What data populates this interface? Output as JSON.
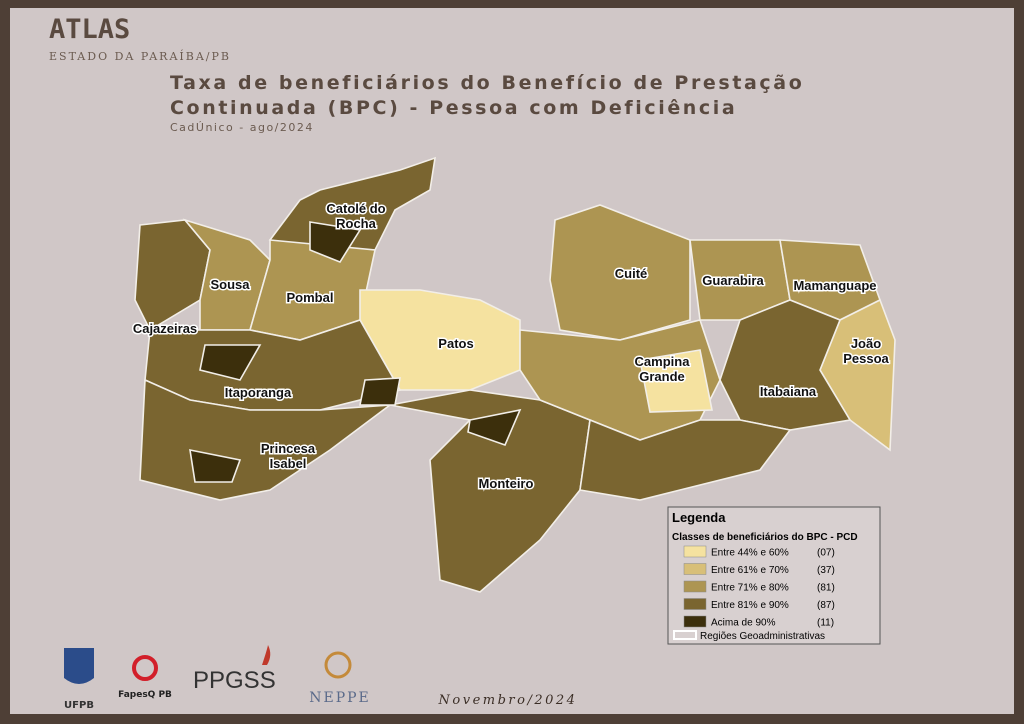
{
  "header": {
    "brand": "ATLAS",
    "state": "ESTADO DA PARAÍBA/PB",
    "title_lines": [
      "Taxa de beneficiários do Benefício de Prestação",
      "Continuada (BPC) - Pessoa com Deficiência"
    ],
    "source": "CadÚnico - ago/2024"
  },
  "regions": [
    {
      "lines": [
        "Catolé do",
        "Rocha"
      ]
    },
    {
      "lines": [
        "Sousa"
      ]
    },
    {
      "lines": [
        "Pombal"
      ]
    },
    {
      "lines": [
        "Cajazeiras"
      ]
    },
    {
      "lines": [
        "Patos"
      ]
    },
    {
      "lines": [
        "Itaporanga"
      ]
    },
    {
      "lines": [
        "Princesa",
        "Isabel"
      ]
    },
    {
      "lines": [
        "Monteiro"
      ]
    },
    {
      "lines": [
        "Cuité"
      ]
    },
    {
      "lines": [
        "Guarabira"
      ]
    },
    {
      "lines": [
        "Mamanguape"
      ]
    },
    {
      "lines": [
        "João",
        "Pessoa"
      ]
    },
    {
      "lines": [
        "Campina",
        "Grande"
      ]
    },
    {
      "lines": [
        "Itabaiana"
      ]
    }
  ],
  "legend": {
    "title": "Legenda",
    "subtitle": "Classes de beneficiários do BPC - PCD",
    "items": [
      {
        "label": "Entre 44% e 60%",
        "count": "(07)",
        "color": "#f5e2a0"
      },
      {
        "label": "Entre 61% e 70%",
        "count": "(37)",
        "color": "#d8bf78"
      },
      {
        "label": "Entre 71% e 80%",
        "count": "(81)",
        "color": "#ad9552"
      },
      {
        "label": "Entre 81% e 90%",
        "count": "(87)",
        "color": "#7a6530"
      },
      {
        "label": "Acima de 90%",
        "count": "(11)",
        "color": "#3c2f0c"
      }
    ],
    "boundary": "Regiões Geoadministrativas"
  },
  "logos": [
    "UFPB",
    "FapesQ PB",
    "PPGSS",
    "NEPPE"
  ],
  "footer": {
    "date": "Novembro/2024"
  }
}
